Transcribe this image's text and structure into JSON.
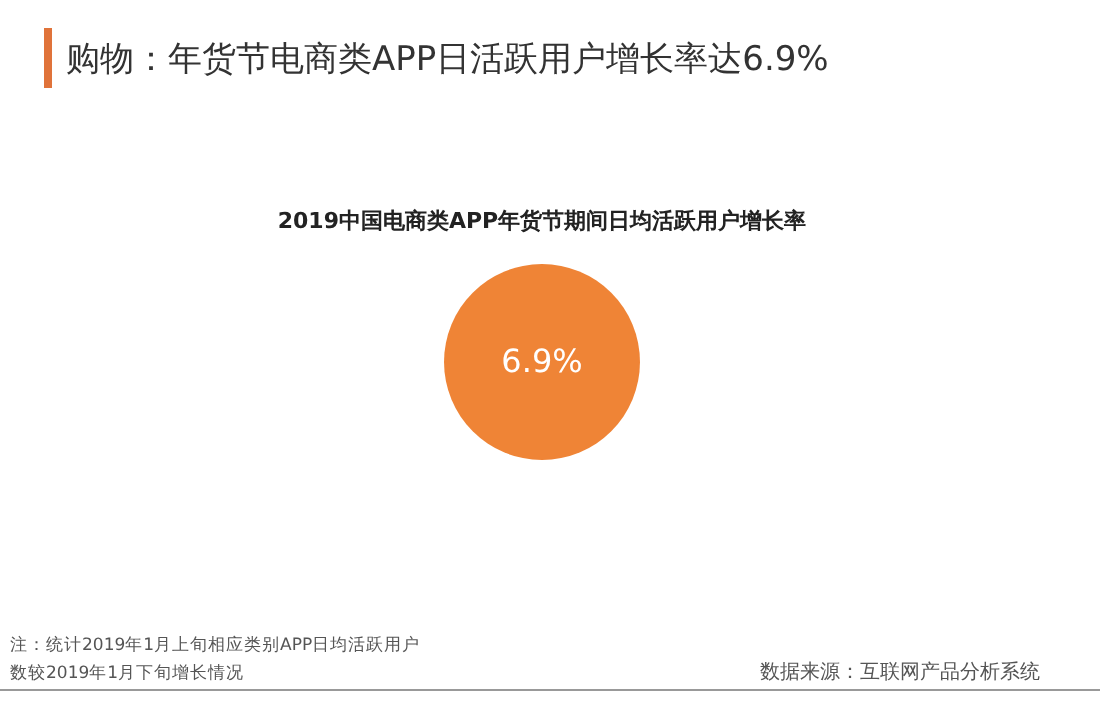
{
  "chart_data": {
    "type": "other",
    "title": "购物：年货节电商类APP日活跃用户增长率达6.9%",
    "subtitle": "2019中国电商类APP年货节期间日均活跃用户增长率",
    "values": [
      6.9
    ],
    "value_labels": [
      "6.9%"
    ],
    "colors": [
      "#ef8436"
    ],
    "annotations": [
      "注：统计2019年1月上旬相应类别APP日均活跃用户数较2019年1月下旬增长情况",
      "数据来源：互联网产品分析系统"
    ]
  }
}
